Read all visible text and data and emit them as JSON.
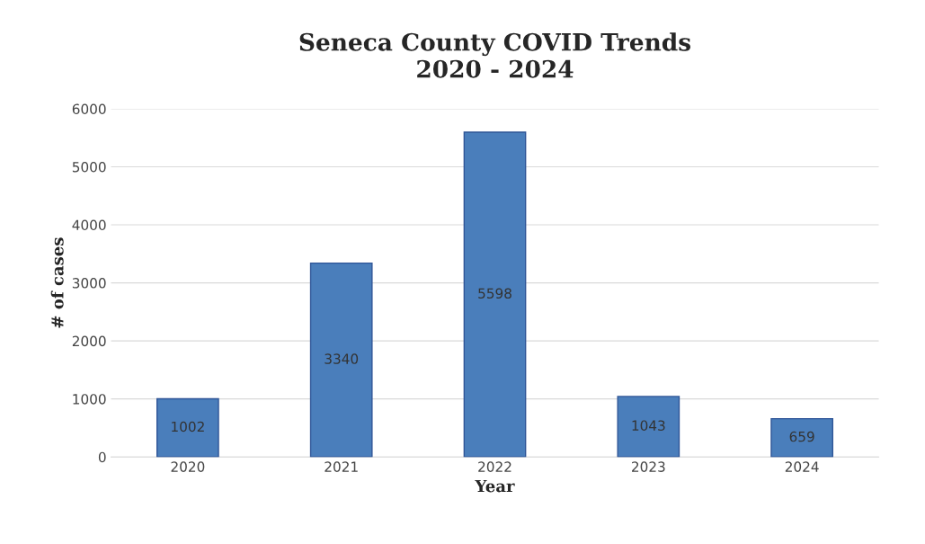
{
  "chart_data": {
    "type": "bar",
    "title": "Seneca County COVID Trends\n2020 - 2024",
    "xlabel": "Year",
    "ylabel": "# of cases",
    "categories": [
      "2020",
      "2021",
      "2022",
      "2023",
      "2024"
    ],
    "values": [
      1002,
      3340,
      5598,
      1043,
      659
    ],
    "color": "#4a7ebb",
    "ylim": [
      0,
      6000
    ],
    "yticks": [
      0,
      1000,
      2000,
      3000,
      4000,
      5000,
      6000
    ],
    "grid": "y",
    "data_labels": true
  }
}
